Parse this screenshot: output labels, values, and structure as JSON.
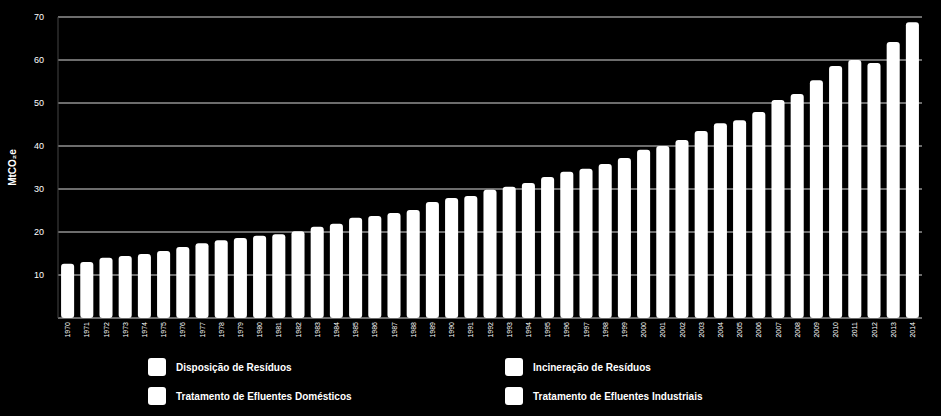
{
  "chart_data": {
    "type": "bar",
    "stacked": true,
    "grid": true,
    "legend": "bottom",
    "y_label": "MtCO₂e",
    "categories": [
      "1970",
      "1971",
      "1972",
      "1973",
      "1974",
      "1975",
      "1976",
      "1977",
      "1978",
      "1979",
      "1980",
      "1981",
      "1982",
      "1983",
      "1984",
      "1985",
      "1986",
      "1987",
      "1988",
      "1989",
      "1990",
      "1991",
      "1992",
      "1993",
      "1994",
      "1995",
      "1996",
      "1997",
      "1998",
      "1999",
      "2000",
      "2001",
      "2002",
      "2003",
      "2004",
      "2005",
      "2006",
      "2007",
      "2008",
      "2009",
      "2010",
      "2011",
      "2012",
      "2013",
      "2014"
    ],
    "series": [
      {
        "name": "Disposição de Resíduos",
        "color": "#ffffff",
        "values": [
          12.6,
          13,
          14,
          14.4,
          14.9,
          15.6,
          16.5,
          17.4,
          18.1,
          18.6,
          19.1,
          19.5,
          20.2,
          21.2,
          21.9,
          23.3,
          23.7,
          24.4,
          25.1,
          27,
          27.9,
          28.4,
          29.8,
          30.5,
          31.4,
          32.8,
          34,
          34.7,
          35.8,
          37.2,
          39.1,
          40,
          41.4,
          43.5,
          45.3,
          46,
          47.9,
          50.7,
          52.1,
          55.3,
          58.6,
          60,
          59.3,
          64.2,
          68.8
        ]
      },
      {
        "name": "Incineração de Resíduos",
        "color": "#ffffff",
        "values": [
          null,
          null,
          null,
          null,
          null,
          null,
          null,
          null,
          null,
          null,
          null,
          null,
          null,
          null,
          null,
          null,
          null,
          null,
          null,
          null,
          null,
          null,
          null,
          null,
          null,
          null,
          null,
          null,
          null,
          null,
          null,
          null,
          null,
          null,
          null,
          null,
          null,
          null,
          null,
          null,
          null,
          null,
          null,
          null,
          null
        ]
      },
      {
        "name": "Tratamento de Efluentes Domésticos",
        "color": "#ffffff",
        "values": [
          null,
          null,
          null,
          null,
          null,
          null,
          null,
          null,
          null,
          null,
          null,
          null,
          null,
          null,
          null,
          null,
          null,
          null,
          null,
          null,
          null,
          null,
          null,
          null,
          null,
          null,
          null,
          null,
          null,
          null,
          null,
          null,
          null,
          null,
          null,
          null,
          null,
          null,
          null,
          null,
          null,
          null,
          null,
          null,
          null
        ]
      },
      {
        "name": "Tratamento de Efluentes Industriais",
        "color": "#ffffff",
        "values": [
          null,
          null,
          null,
          null,
          null,
          null,
          null,
          null,
          null,
          null,
          null,
          null,
          null,
          null,
          null,
          null,
          null,
          null,
          null,
          null,
          null,
          null,
          null,
          null,
          null,
          null,
          null,
          null,
          null,
          null,
          null,
          null,
          null,
          null,
          null,
          null,
          null,
          null,
          null,
          null,
          null,
          null,
          null,
          null,
          null
        ]
      }
    ],
    "ylim": [
      0,
      70
    ],
    "yticks": [
      10,
      20,
      30,
      40,
      50,
      60,
      70
    ]
  }
}
